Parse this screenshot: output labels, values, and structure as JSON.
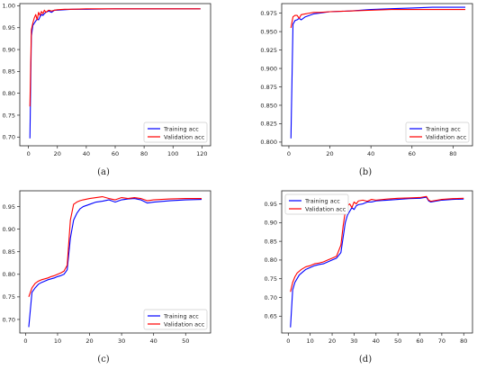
{
  "colors": {
    "training": "#0000ff",
    "validation": "#ff0000"
  },
  "chart_data": [
    {
      "type": "line",
      "caption": "(a)",
      "xlim": [
        -6,
        126
      ],
      "ylim": [
        0.68,
        1.005
      ],
      "xticks": [
        0,
        20,
        40,
        60,
        80,
        100,
        120
      ],
      "yticks": [
        0.7,
        0.75,
        0.8,
        0.85,
        0.9,
        0.95,
        1.0
      ],
      "ytick_decimals": 2,
      "legend": {
        "placement": "bottom-right",
        "entries": [
          "Training acc",
          "Validation acc"
        ]
      },
      "series": [
        {
          "name": "Training acc",
          "color": "#0000ff",
          "x": [
            1,
            2,
            3,
            4,
            5,
            6,
            7,
            8,
            9,
            10,
            11,
            12,
            14,
            16,
            18,
            20,
            25,
            30,
            40,
            60,
            80,
            100,
            119
          ],
          "y": [
            0.697,
            0.93,
            0.955,
            0.96,
            0.965,
            0.97,
            0.968,
            0.975,
            0.98,
            0.978,
            0.982,
            0.985,
            0.988,
            0.985,
            0.99,
            0.99,
            0.991,
            0.992,
            0.992,
            0.993,
            0.993,
            0.993,
            0.993
          ]
        },
        {
          "name": "Validation acc",
          "color": "#ff0000",
          "x": [
            1,
            2,
            3,
            4,
            5,
            6,
            7,
            8,
            9,
            10,
            11,
            12,
            14,
            16,
            18,
            20,
            25,
            30,
            40,
            60,
            80,
            100,
            119
          ],
          "y": [
            0.77,
            0.945,
            0.96,
            0.972,
            0.98,
            0.968,
            0.985,
            0.978,
            0.987,
            0.982,
            0.99,
            0.985,
            0.99,
            0.988,
            0.99,
            0.991,
            0.992,
            0.992,
            0.993,
            0.993,
            0.993,
            0.993,
            0.993
          ]
        }
      ]
    },
    {
      "type": "line",
      "caption": "(b)",
      "xlim": [
        -3.5,
        89.5
      ],
      "ylim": [
        0.795,
        0.988
      ],
      "xticks": [
        0,
        20,
        40,
        60,
        80
      ],
      "yticks": [
        0.8,
        0.825,
        0.85,
        0.875,
        0.9,
        0.925,
        0.95,
        0.975
      ],
      "ytick_decimals": 3,
      "legend": {
        "placement": "bottom-right",
        "entries": [
          "Training acc",
          "Validation acc"
        ]
      },
      "series": [
        {
          "name": "Training acc",
          "color": "#0000ff",
          "x": [
            1,
            2,
            3,
            4,
            5,
            6,
            8,
            10,
            12,
            15,
            20,
            30,
            40,
            50,
            60,
            70,
            80,
            86
          ],
          "y": [
            0.805,
            0.96,
            0.965,
            0.966,
            0.968,
            0.966,
            0.97,
            0.972,
            0.974,
            0.975,
            0.977,
            0.978,
            0.98,
            0.981,
            0.982,
            0.983,
            0.983,
            0.983
          ]
        },
        {
          "name": "Validation acc",
          "color": "#ff0000",
          "x": [
            1,
            2,
            3,
            4,
            5,
            6,
            8,
            10,
            12,
            15,
            20,
            30,
            40,
            50,
            60,
            70,
            80,
            86
          ],
          "y": [
            0.955,
            0.97,
            0.972,
            0.972,
            0.968,
            0.973,
            0.974,
            0.975,
            0.976,
            0.976,
            0.977,
            0.978,
            0.979,
            0.98,
            0.98,
            0.98,
            0.98,
            0.98
          ]
        }
      ]
    },
    {
      "type": "line",
      "caption": "(c)",
      "xlim": [
        -1.8,
        57.8
      ],
      "ylim": [
        0.67,
        0.985
      ],
      "xticks": [
        0,
        10,
        20,
        30,
        40,
        50
      ],
      "yticks": [
        0.7,
        0.75,
        0.8,
        0.85,
        0.9,
        0.95
      ],
      "ytick_decimals": 2,
      "legend": {
        "placement": "bottom-right",
        "entries": [
          "Training acc",
          "Validation acc"
        ]
      },
      "series": [
        {
          "name": "Training acc",
          "color": "#0000ff",
          "x": [
            1,
            2,
            3,
            4,
            5,
            6,
            7,
            8,
            9,
            10,
            11,
            12,
            13,
            14,
            15,
            16,
            17,
            18,
            20,
            22,
            24,
            26,
            28,
            30,
            32,
            34,
            36,
            38,
            40,
            45,
            50,
            55
          ],
          "y": [
            0.683,
            0.76,
            0.77,
            0.778,
            0.782,
            0.785,
            0.788,
            0.79,
            0.792,
            0.795,
            0.797,
            0.8,
            0.81,
            0.88,
            0.92,
            0.935,
            0.945,
            0.95,
            0.955,
            0.96,
            0.962,
            0.965,
            0.96,
            0.965,
            0.967,
            0.968,
            0.965,
            0.958,
            0.96,
            0.963,
            0.965,
            0.966
          ]
        },
        {
          "name": "Validation acc",
          "color": "#ff0000",
          "x": [
            1,
            2,
            3,
            4,
            5,
            6,
            7,
            8,
            9,
            10,
            11,
            12,
            13,
            14,
            15,
            16,
            17,
            18,
            20,
            22,
            24,
            26,
            28,
            30,
            32,
            34,
            36,
            38,
            40,
            45,
            50,
            55
          ],
          "y": [
            0.75,
            0.77,
            0.78,
            0.785,
            0.788,
            0.79,
            0.792,
            0.795,
            0.797,
            0.8,
            0.803,
            0.807,
            0.82,
            0.92,
            0.955,
            0.96,
            0.963,
            0.965,
            0.968,
            0.97,
            0.972,
            0.968,
            0.965,
            0.97,
            0.968,
            0.97,
            0.968,
            0.963,
            0.965,
            0.967,
            0.968,
            0.968
          ]
        }
      ]
    },
    {
      "type": "line",
      "caption": "(d)",
      "xlim": [
        -3,
        84
      ],
      "ylim": [
        0.605,
        0.985
      ],
      "xticks": [
        0,
        10,
        20,
        30,
        40,
        50,
        60,
        70,
        80
      ],
      "yticks": [
        0.65,
        0.7,
        0.75,
        0.8,
        0.85,
        0.9,
        0.95
      ],
      "ytick_decimals": 2,
      "legend": {
        "placement": "top-left",
        "entries": [
          "Training acc",
          "Validation acc"
        ]
      },
      "series": [
        {
          "name": "Training acc",
          "color": "#0000ff",
          "x": [
            1,
            2,
            3,
            4,
            5,
            6,
            8,
            10,
            12,
            14,
            16,
            18,
            20,
            22,
            24,
            25,
            26,
            27,
            28,
            29,
            30,
            31,
            32,
            34,
            36,
            38,
            40,
            45,
            50,
            55,
            60,
            63,
            64,
            65,
            70,
            75,
            80
          ],
          "y": [
            0.62,
            0.72,
            0.74,
            0.75,
            0.76,
            0.765,
            0.775,
            0.78,
            0.785,
            0.788,
            0.79,
            0.795,
            0.8,
            0.805,
            0.82,
            0.86,
            0.9,
            0.92,
            0.93,
            0.94,
            0.935,
            0.945,
            0.948,
            0.95,
            0.955,
            0.955,
            0.958,
            0.96,
            0.962,
            0.964,
            0.965,
            0.968,
            0.958,
            0.955,
            0.96,
            0.962,
            0.963
          ]
        },
        {
          "name": "Validation acc",
          "color": "#ff0000",
          "x": [
            1,
            2,
            3,
            4,
            5,
            6,
            8,
            10,
            12,
            14,
            16,
            18,
            20,
            22,
            24,
            25,
            26,
            27,
            28,
            29,
            30,
            31,
            32,
            34,
            36,
            38,
            40,
            45,
            50,
            55,
            60,
            63,
            64,
            65,
            70,
            75,
            80
          ],
          "y": [
            0.715,
            0.74,
            0.755,
            0.765,
            0.77,
            0.775,
            0.782,
            0.785,
            0.79,
            0.792,
            0.795,
            0.8,
            0.805,
            0.81,
            0.84,
            0.89,
            0.93,
            0.945,
            0.95,
            0.94,
            0.955,
            0.95,
            0.958,
            0.96,
            0.957,
            0.962,
            0.96,
            0.963,
            0.965,
            0.966,
            0.967,
            0.97,
            0.96,
            0.957,
            0.962,
            0.964,
            0.965
          ]
        }
      ]
    }
  ]
}
